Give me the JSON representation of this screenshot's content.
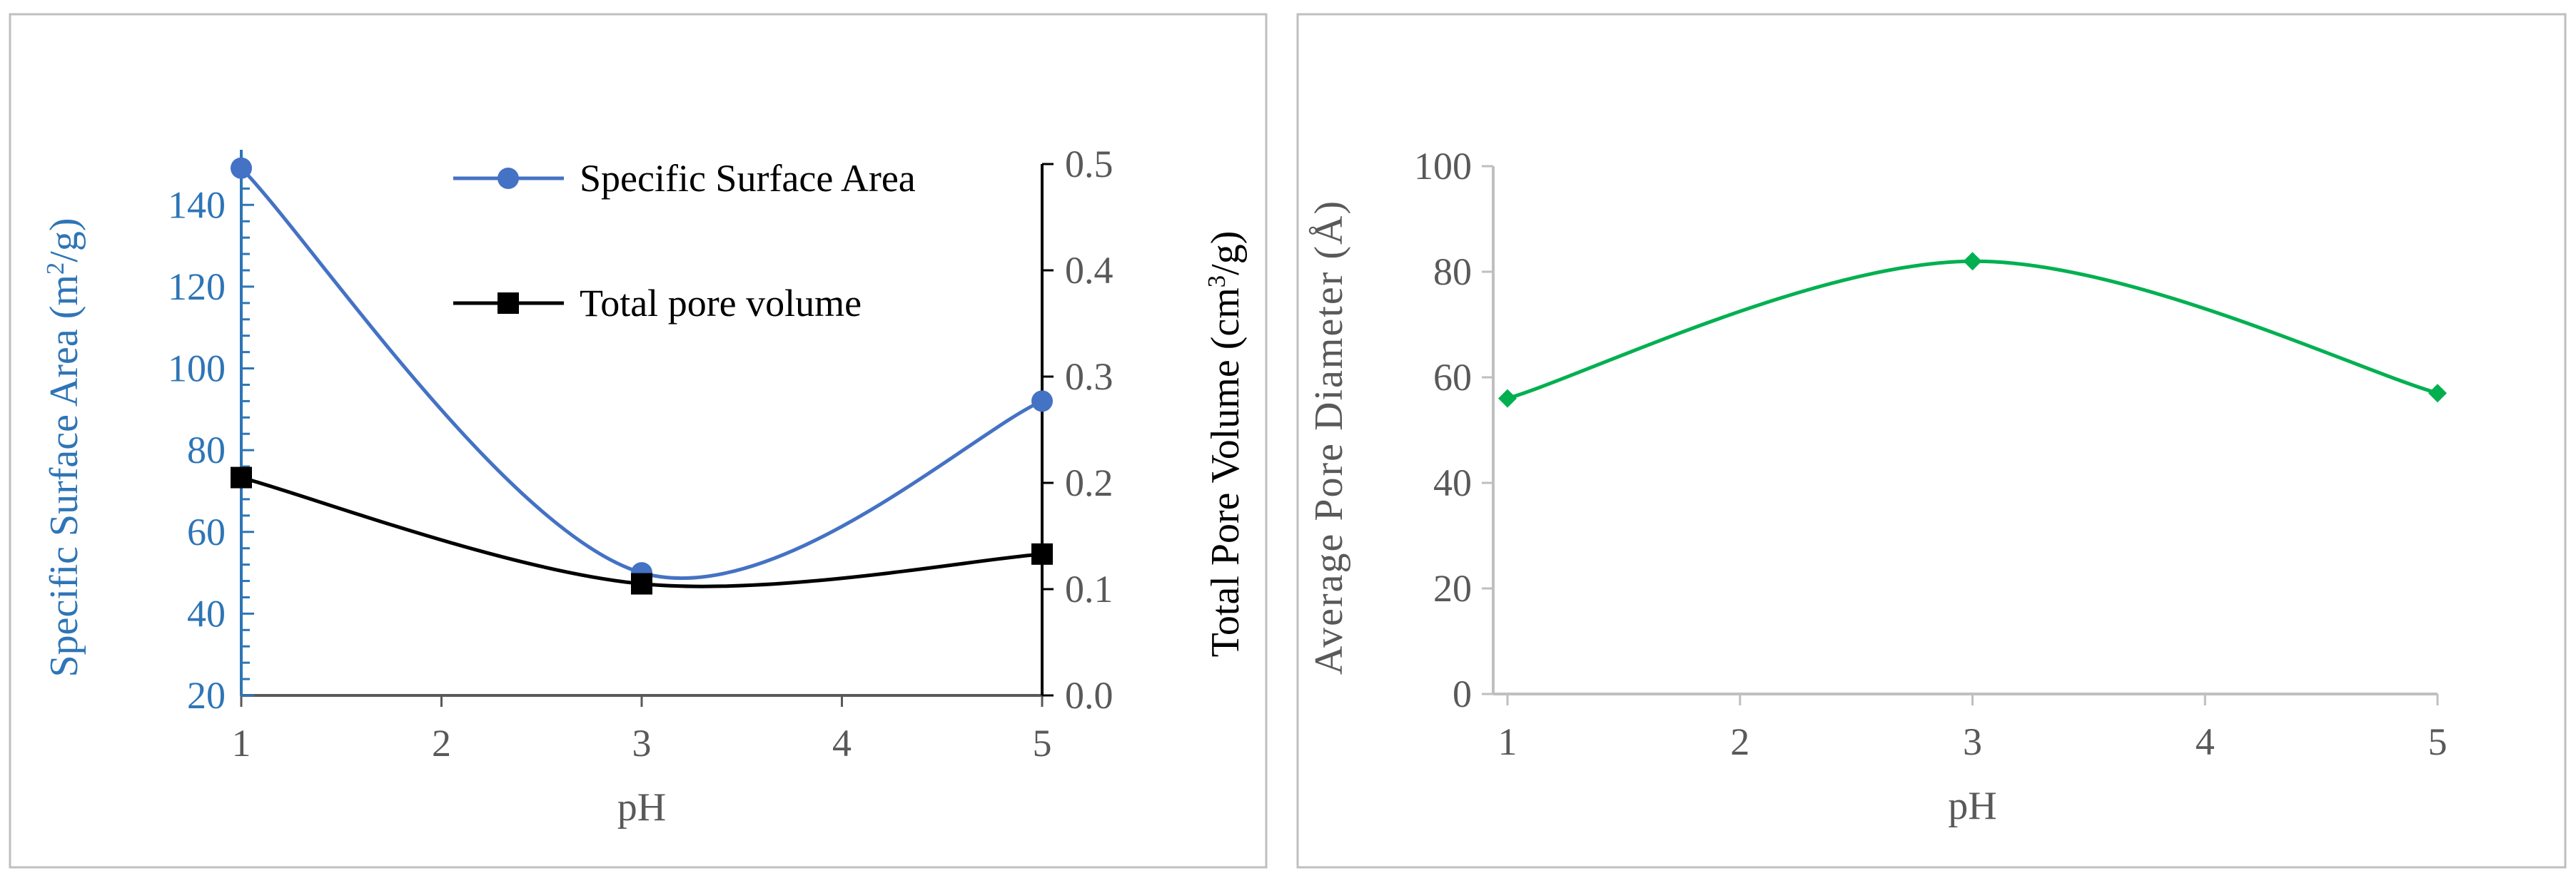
{
  "chart_data": [
    {
      "type": "line",
      "smooth": true,
      "x": [
        1,
        3,
        5
      ],
      "xlabel": "pH",
      "xlim": [
        1,
        5
      ],
      "xticks": [
        "1",
        "2",
        "3",
        "4",
        "5"
      ],
      "ylabel_left": "Specific Surface Area (m²/g)",
      "ylabel_left_parts": [
        "Specific Surface Area (m",
        "2",
        "/g)"
      ],
      "ylim_left": [
        20,
        150
      ],
      "yticks_left": [
        "20",
        "40",
        "60",
        "80",
        "100",
        "120",
        "140"
      ],
      "ylabel_right": "Total Pore Volume (cm³/g)",
      "ylabel_right_parts": [
        "Total Pore Volume (cm",
        "3",
        "/g)"
      ],
      "ylim_right": [
        0,
        0.5
      ],
      "yticks_right": [
        "0.0",
        "0.1",
        "0.2",
        "0.3",
        "0.4",
        "0.5"
      ],
      "grid": false,
      "legend_position": "top-right",
      "series": [
        {
          "name": "Specific Surface Area",
          "axis": "left",
          "color": "#4472c4",
          "marker": "circle",
          "values": [
            149,
            50,
            92
          ]
        },
        {
          "name": "Total pore volume",
          "axis": "right",
          "color": "#000000",
          "marker": "square",
          "values": [
            0.205,
            0.105,
            0.133
          ]
        }
      ],
      "left_axis_color": "#2e75b6"
    },
    {
      "type": "line",
      "smooth": true,
      "x": [
        1,
        3,
        5
      ],
      "xlabel": "pH",
      "xlim": [
        1,
        5
      ],
      "xticks": [
        "1",
        "2",
        "3",
        "4",
        "5"
      ],
      "ylabel": "Average Pore Diameter (Å)",
      "ylim": [
        0,
        100
      ],
      "yticks": [
        "0",
        "20",
        "40",
        "60",
        "80",
        "100"
      ],
      "grid": false,
      "series": [
        {
          "axis": "left",
          "color": "#00b050",
          "marker": "diamond",
          "values": [
            56,
            82,
            57
          ]
        }
      ]
    }
  ]
}
